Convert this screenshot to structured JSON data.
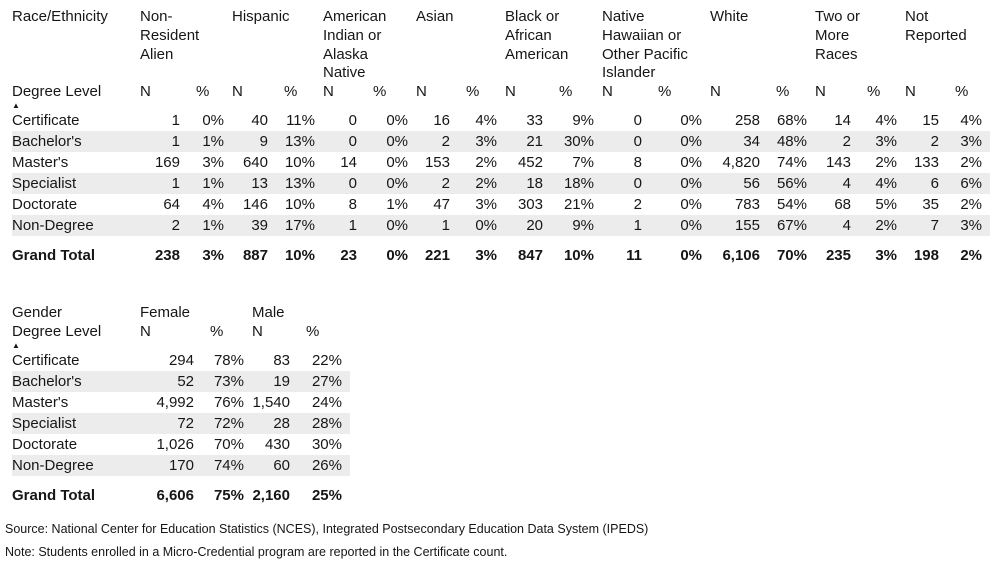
{
  "colors": {
    "background": "#ffffff",
    "text": "#161616",
    "stripe": "#ececec"
  },
  "tables": [
    {
      "name": "race-ethnicity-table",
      "corner_label": "Race/Ethnicity",
      "row_dim_label": "Degree Level",
      "sort": "ascending",
      "subheaders": [
        "N",
        "%"
      ],
      "groups": [
        "Non-\nResident\nAlien",
        "Hispanic",
        "American\nIndian or\nAlaska\nNative",
        "Asian",
        "Black or\nAfrican\nAmerican",
        "Native\nHawaiian or\nOther Pacific\nIslander",
        "White",
        "Two or\nMore\nRaces",
        "Not\nReported"
      ],
      "rows": [
        {
          "label": "Certificate",
          "values": [
            "1",
            "0%",
            "40",
            "11%",
            "0",
            "0%",
            "16",
            "4%",
            "33",
            "9%",
            "0",
            "0%",
            "258",
            "68%",
            "14",
            "4%",
            "15",
            "4%"
          ]
        },
        {
          "label": "Bachelor's",
          "values": [
            "1",
            "1%",
            "9",
            "13%",
            "0",
            "0%",
            "2",
            "3%",
            "21",
            "30%",
            "0",
            "0%",
            "34",
            "48%",
            "2",
            "3%",
            "2",
            "3%"
          ]
        },
        {
          "label": "Master's",
          "values": [
            "169",
            "3%",
            "640",
            "10%",
            "14",
            "0%",
            "153",
            "2%",
            "452",
            "7%",
            "8",
            "0%",
            "4,820",
            "74%",
            "143",
            "2%",
            "133",
            "2%"
          ]
        },
        {
          "label": "Specialist",
          "values": [
            "1",
            "1%",
            "13",
            "13%",
            "0",
            "0%",
            "2",
            "2%",
            "18",
            "18%",
            "0",
            "0%",
            "56",
            "56%",
            "4",
            "4%",
            "6",
            "6%"
          ]
        },
        {
          "label": "Doctorate",
          "values": [
            "64",
            "4%",
            "146",
            "10%",
            "8",
            "1%",
            "47",
            "3%",
            "303",
            "21%",
            "2",
            "0%",
            "783",
            "54%",
            "68",
            "5%",
            "35",
            "2%"
          ]
        },
        {
          "label": "Non-Degree",
          "values": [
            "2",
            "1%",
            "39",
            "17%",
            "1",
            "0%",
            "1",
            "0%",
            "20",
            "9%",
            "1",
            "0%",
            "155",
            "67%",
            "4",
            "2%",
            "7",
            "3%"
          ]
        }
      ],
      "grand_total": {
        "label": "Grand Total",
        "values": [
          "238",
          "3%",
          "887",
          "10%",
          "23",
          "0%",
          "221",
          "3%",
          "847",
          "10%",
          "11",
          "0%",
          "6,106",
          "70%",
          "235",
          "3%",
          "198",
          "2%"
        ]
      }
    },
    {
      "name": "gender-table",
      "corner_label": "Gender",
      "row_dim_label": "Degree Level",
      "sort": "ascending",
      "subheaders": [
        "N",
        "%"
      ],
      "groups": [
        "Female",
        "Male"
      ],
      "rows": [
        {
          "label": "Certificate",
          "values": [
            "294",
            "78%",
            "83",
            "22%"
          ]
        },
        {
          "label": "Bachelor's",
          "values": [
            "52",
            "73%",
            "19",
            "27%"
          ]
        },
        {
          "label": "Master's",
          "values": [
            "4,992",
            "76%",
            "1,540",
            "24%"
          ]
        },
        {
          "label": "Specialist",
          "values": [
            "72",
            "72%",
            "28",
            "28%"
          ]
        },
        {
          "label": "Doctorate",
          "values": [
            "1,026",
            "70%",
            "430",
            "30%"
          ]
        },
        {
          "label": "Non-Degree",
          "values": [
            "170",
            "74%",
            "60",
            "26%"
          ]
        }
      ],
      "grand_total": {
        "label": "Grand Total",
        "values": [
          "6,606",
          "75%",
          "2,160",
          "25%"
        ]
      }
    }
  ],
  "footer": {
    "source": "Source: National Center for Education Statistics (NCES), Integrated Postsecondary Education Data System (IPEDS)",
    "note": "Note: Students enrolled in a Micro-Credential program are reported in the Certificate count."
  }
}
